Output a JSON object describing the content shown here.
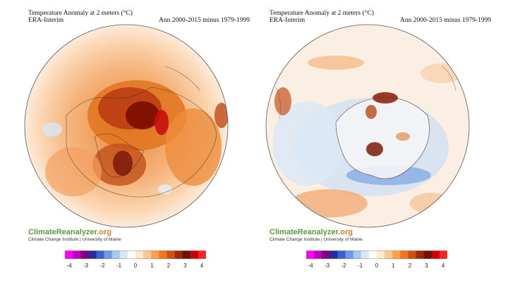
{
  "panels": [
    {
      "title": "Temperature Anomaly at 2 meters (°C)",
      "dataset": "ERA-Interim",
      "period": "Ann 2000-2015 minus 1979-1999",
      "brand_main": "ClimateReanalyzer",
      "brand_suffix": ".org",
      "brand_sub": "Climate Change Institute | University of Maine",
      "hemisphere": "north"
    },
    {
      "title": "Temperature Anomaly at 2 meters (°C)",
      "dataset": "ERA-Interim",
      "period": "Ann 2000-2015 minus 1979-1999",
      "brand_main": "ClimateReanalyzer",
      "brand_suffix": ".org",
      "brand_sub": "Climate Change Institute | University of Maine",
      "hemisphere": "south"
    }
  ],
  "colorbar": {
    "ticks": [
      "-4",
      "-3",
      "-2",
      "-1",
      "0",
      "1",
      "2",
      "3",
      "4"
    ],
    "colors": [
      "#ff00ff",
      "#c000c0",
      "#800080",
      "#2a2aa0",
      "#3a5fd0",
      "#6a9ae8",
      "#a8c8f0",
      "#d8e8f8",
      "#ffffff",
      "#ffe8cc",
      "#ffc890",
      "#ffa050",
      "#f07820",
      "#d05010",
      "#a02808",
      "#701000",
      "#d00000",
      "#ff2020"
    ]
  }
}
